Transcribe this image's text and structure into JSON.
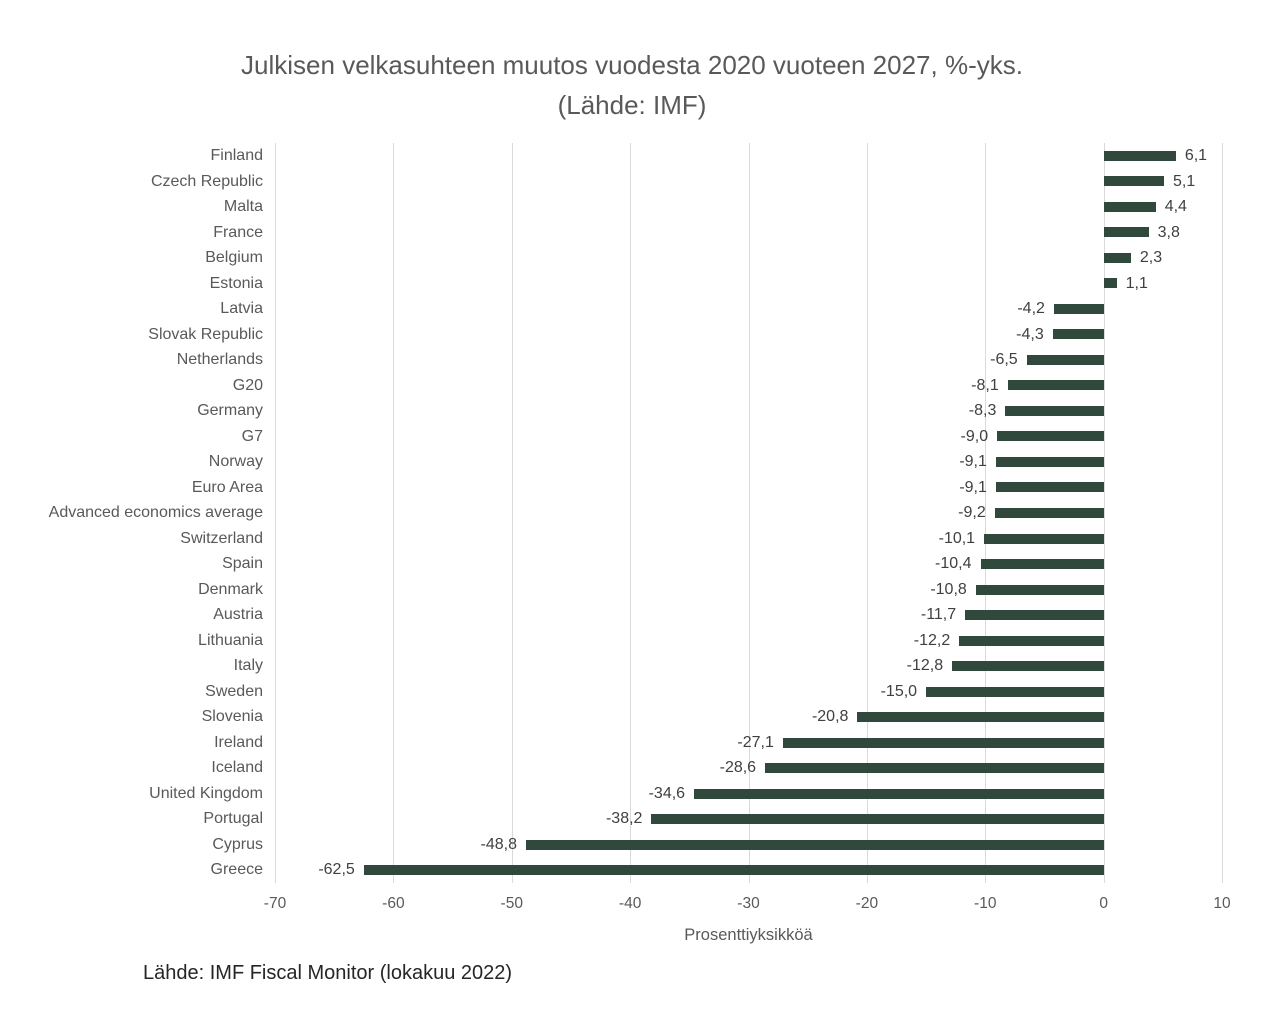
{
  "chart_data": {
    "type": "bar",
    "orientation": "horizontal",
    "title": "Julkisen velkasuhteen muutos vuodesta 2020 vuoteen 2027, %-yks.",
    "subtitle": "(Lähde: IMF)",
    "xlabel": "Prosenttiyksikköä",
    "footer": "Lähde: IMF Fiscal Monitor (lokakuu 2022)",
    "xlim": [
      -70,
      10
    ],
    "xticks": [
      -70,
      -60,
      -50,
      -40,
      -30,
      -20,
      -10,
      0,
      10
    ],
    "xtick_labels": [
      "-70",
      "-60",
      "-50",
      "-40",
      "-30",
      "-20",
      "-10",
      "0",
      "10"
    ],
    "grid": "vertical",
    "legend": "none",
    "bar_color": "#31493D",
    "gridline_color": "#D9D9D9",
    "categories": [
      "Finland",
      "Czech Republic",
      "Malta",
      "France",
      "Belgium",
      "Estonia",
      "Latvia",
      "Slovak Republic",
      "Netherlands",
      "G20",
      "Germany",
      "G7",
      "Norway",
      "Euro Area",
      "Advanced economics average",
      "Switzerland",
      "Spain",
      "Denmark",
      "Austria",
      "Lithuania",
      "Italy",
      "Sweden",
      "Slovenia",
      "Ireland",
      "Iceland",
      "United Kingdom",
      "Portugal",
      "Cyprus",
      "Greece"
    ],
    "values": [
      6.1,
      5.1,
      4.4,
      3.8,
      2.3,
      1.1,
      -4.2,
      -4.3,
      -6.5,
      -8.1,
      -8.3,
      -9.0,
      -9.1,
      -9.1,
      -9.2,
      -10.1,
      -10.4,
      -10.8,
      -11.7,
      -12.2,
      -12.8,
      -15.0,
      -20.8,
      -27.1,
      -28.6,
      -34.6,
      -38.2,
      -48.8,
      -62.5
    ],
    "value_labels": [
      "6,1",
      "5,1",
      "4,4",
      "3,8",
      "2,3",
      "1,1",
      "-4,2",
      "-4,3",
      "-6,5",
      "-8,1",
      "-8,3",
      "-9,0",
      "-9,1",
      "-9,1",
      "-9,2",
      "-10,1",
      "-10,4",
      "-10,8",
      "-11,7",
      "-12,2",
      "-12,8",
      "-15,0",
      "-20,8",
      "-27,1",
      "-28,6",
      "-34,6",
      "-38,2",
      "-48,8",
      "-62,5"
    ]
  }
}
